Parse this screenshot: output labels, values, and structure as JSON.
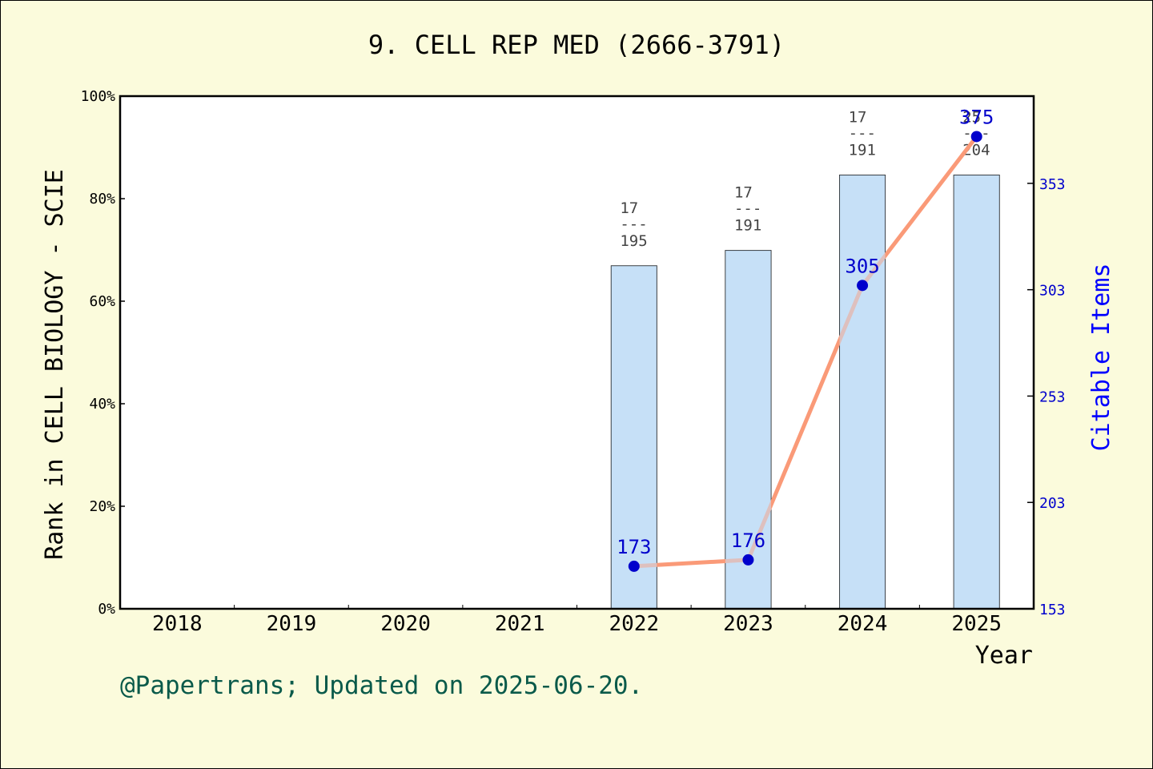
{
  "chart_data": {
    "type": "bar+line",
    "title": "9. CELL REP MED (2666-3791)",
    "xlabel": "Year",
    "ylabel_left": "Rank in CELL BIOLOGY - SCIE",
    "ylabel_right": "Citable Items",
    "categories": [
      "2018",
      "2019",
      "2020",
      "2021",
      "2022",
      "2023",
      "2024",
      "2025"
    ],
    "left_axis": {
      "ylim": [
        0,
        100
      ],
      "ticks": [
        0,
        20,
        40,
        60,
        80,
        100
      ],
      "tick_labels": [
        "0%",
        "20%",
        "40%",
        "60%",
        "80%",
        "100%"
      ]
    },
    "right_axis": {
      "ylim": [
        153,
        394
      ],
      "ticks": [
        153,
        203,
        253,
        303,
        353
      ],
      "tick_labels": [
        "153",
        "203",
        "253",
        "303",
        "353"
      ]
    },
    "bars": [
      {
        "year": "2022",
        "value": 66.9,
        "rank_top": "17",
        "rank_sep": "---",
        "rank_bottom": "195"
      },
      {
        "year": "2023",
        "value": 69.9,
        "rank_top": "17",
        "rank_sep": "---",
        "rank_bottom": "191"
      },
      {
        "year": "2024",
        "value": 84.6,
        "rank_top": "17",
        "rank_sep": "---",
        "rank_bottom": "191"
      },
      {
        "year": "2025",
        "value": 84.6,
        "rank_top": "25",
        "rank_sep": "---",
        "rank_bottom": "204"
      }
    ],
    "line": {
      "name": "Citable Items",
      "points": [
        {
          "year": "2022",
          "value": 173,
          "label": "173"
        },
        {
          "year": "2023",
          "value": 176,
          "label": "176"
        },
        {
          "year": "2024",
          "value": 305,
          "label": "305"
        },
        {
          "year": "2025",
          "value": 375,
          "label": "375"
        }
      ]
    },
    "grid": false,
    "colors": {
      "background": "#fbfbdc",
      "plot_bg": "#ffffff",
      "bar_fill": "#c6e0f7",
      "line": "#fa9a78",
      "line_overlap": "#c8c8d8",
      "marker": "#0000cc",
      "right_axis": "#0000cc",
      "footer": "#0a5a4a"
    }
  },
  "footer": "@Papertrans; Updated on 2025-06-20."
}
